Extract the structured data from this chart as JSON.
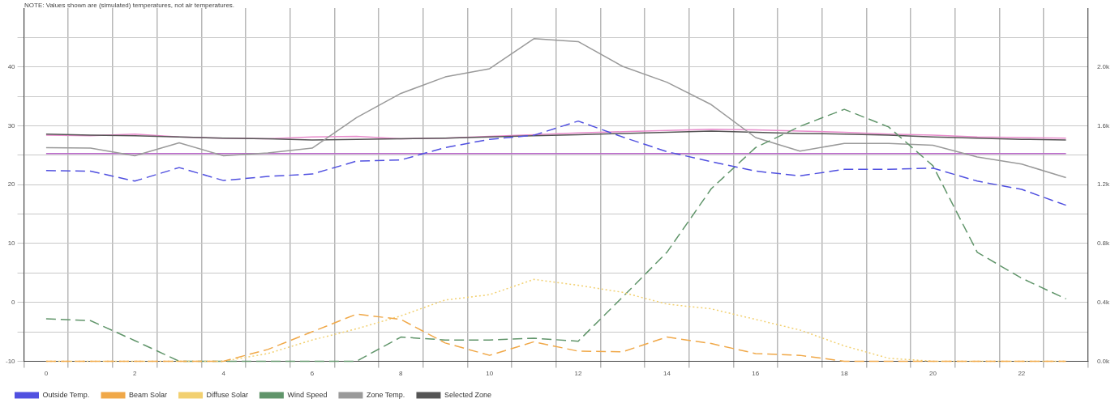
{
  "chart_data": {
    "type": "line",
    "annotations": [
      "NOTE: Values shown are (simulated) temperatures, not air temperatures."
    ],
    "categories": [
      "0",
      null,
      "2",
      null,
      "4",
      null,
      "6",
      null,
      "8",
      null,
      "10",
      null,
      "12",
      null,
      "14",
      null,
      "16",
      null,
      "18",
      null,
      "20",
      null,
      "22",
      null
    ],
    "ylim": [
      -10,
      50
    ],
    "yticks": [
      -10,
      {
        "value": -5,
        "label": null
      },
      0,
      {
        "value": 5,
        "label": null
      },
      10,
      {
        "value": 15,
        "label": null
      },
      20,
      {
        "value": 25,
        "label": null
      },
      30,
      {
        "value": 35,
        "label": null
      },
      40,
      {
        "value": 45,
        "label": null
      }
    ],
    "y2lim": [
      0,
      2400
    ],
    "y2ticks": [
      {
        "value": 0,
        "label": "0.0k"
      },
      {
        "value": 400,
        "label": "0.4k"
      },
      {
        "value": 800,
        "label": "0.8k"
      },
      {
        "value": 1200,
        "label": "1.2k"
      },
      {
        "value": 1600,
        "label": "1.6k"
      },
      {
        "value": 2000,
        "label": "2.0k"
      }
    ],
    "grid": true,
    "legend": "bottom",
    "marker": "none",
    "series": [
      {
        "name": "Outside Temp.",
        "color": "#5050e0",
        "line_style": "dashed",
        "values": [
          22.4,
          22.3,
          20.6,
          22.9,
          20.7,
          21.4,
          21.8,
          24.0,
          24.2,
          26.3,
          27.7,
          28.4,
          30.8,
          28.1,
          25.6,
          23.9,
          22.3,
          21.5,
          22.6,
          22.6,
          22.8,
          20.6,
          19.2,
          16.5
        ]
      },
      {
        "name": "Beam Solar",
        "color": "#f0a848",
        "line_style": "dashed",
        "values": [
          -10,
          -10,
          -10,
          -10,
          -10,
          -8.0,
          -5.0,
          -2.0,
          -2.9,
          -6.9,
          -9.0,
          -6.7,
          -8.3,
          -8.4,
          -5.9,
          -7.0,
          -8.7,
          -9.0,
          -10,
          -10,
          -10,
          -10,
          -10,
          -10
        ]
      },
      {
        "name": "Diffuse Solar",
        "color": "#f2d070",
        "line_style": "dotted",
        "values": [
          -10,
          -10,
          -10,
          -10,
          -10,
          -8.7,
          -6.4,
          -4.5,
          -2.3,
          0.4,
          1.3,
          3.9,
          2.9,
          1.7,
          -0.3,
          -1.1,
          -2.9,
          -4.7,
          -7.4,
          -9.5,
          -10,
          -10,
          -10,
          -10
        ]
      },
      {
        "name": "Wind Speed",
        "color": "#60956a",
        "line_style": "dashed",
        "values": [
          -2.8,
          -3.1,
          -6.5,
          -10,
          -10,
          -10,
          -10,
          -10,
          -5.9,
          -6.4,
          -6.4,
          -6.1,
          -6.6,
          0.9,
          8.5,
          19.3,
          26.3,
          29.9,
          32.8,
          29.8,
          23.2,
          8.5,
          4.1,
          0.6
        ]
      },
      {
        "name": "Zone Temp.",
        "color": "#9a9a9a",
        "line_style": "solid",
        "values": [
          26.3,
          26.2,
          24.9,
          27.1,
          24.9,
          25.4,
          26.2,
          31.4,
          35.5,
          38.3,
          39.7,
          44.8,
          44.3,
          40.1,
          37.4,
          33.6,
          28.0,
          25.7,
          27.0,
          27.0,
          26.7,
          24.7,
          23.5,
          21.2
        ]
      },
      {
        "name": "Selected Zone",
        "color": "#555555",
        "line_style": "solid",
        "values": [
          28.6,
          28.4,
          28.3,
          28.1,
          27.9,
          27.8,
          27.6,
          27.7,
          27.8,
          27.9,
          28.1,
          28.3,
          28.5,
          28.7,
          28.9,
          29.1,
          28.9,
          28.7,
          28.6,
          28.4,
          28.1,
          27.9,
          27.7,
          27.6
        ]
      },
      {
        "color": "#e88ccc",
        "line_style": "solid",
        "values": [
          28.4,
          28.3,
          28.6,
          28.1,
          27.9,
          27.8,
          28.1,
          28.2,
          27.8,
          27.9,
          28.2,
          28.5,
          28.8,
          29.0,
          29.2,
          29.4,
          29.3,
          29.1,
          28.9,
          28.6,
          28.4,
          28.1,
          28.0,
          27.9
        ]
      },
      {
        "color": "#b868c8",
        "line_style": "solid",
        "values": [
          25.3,
          25.3,
          25.3,
          25.3,
          25.3,
          25.3,
          25.3,
          25.3,
          25.3,
          25.3,
          25.3,
          25.3,
          25.3,
          25.3,
          25.3,
          25.3,
          25.3,
          25.3,
          25.3,
          25.3,
          25.3,
          25.3,
          25.3,
          25.3
        ]
      }
    ]
  }
}
